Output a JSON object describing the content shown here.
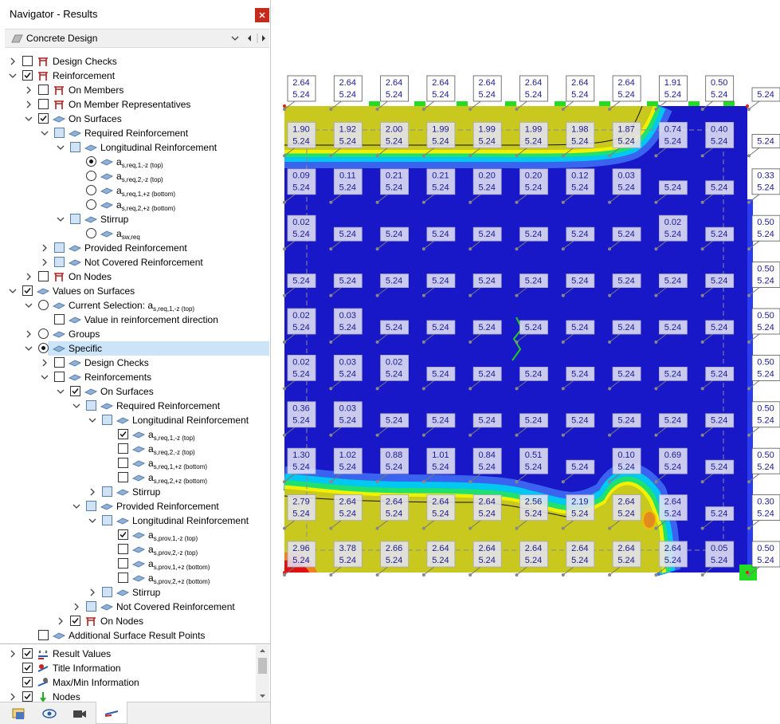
{
  "navigator": {
    "title": "Navigator - Results",
    "dropdown": "Concrete Design",
    "items": [
      {
        "label": "Design Checks",
        "level": 0,
        "expander": "collapsed",
        "control": "checkbox",
        "state": "unchecked",
        "icon": "member"
      },
      {
        "label": "Reinforcement",
        "level": 0,
        "expander": "expanded",
        "control": "checkbox",
        "state": "checked",
        "icon": "member"
      },
      {
        "label": "On Members",
        "level": 1,
        "expander": "collapsed",
        "control": "checkbox",
        "state": "unchecked",
        "icon": "member"
      },
      {
        "label": "On Member Representatives",
        "level": 1,
        "expander": "collapsed",
        "control": "checkbox",
        "state": "unchecked",
        "icon": "member"
      },
      {
        "label": "On Surfaces",
        "level": 1,
        "expander": "expanded",
        "control": "checkbox",
        "state": "checked",
        "icon": "surface"
      },
      {
        "label": "Required Reinforcement",
        "level": 2,
        "expander": "expanded",
        "control": "checkbox",
        "state": "partial",
        "icon": "surface"
      },
      {
        "label": "Longitudinal Reinforcement",
        "level": 3,
        "expander": "expanded",
        "control": "checkbox",
        "state": "partial",
        "icon": "surface"
      },
      {
        "label": "a",
        "sub": "s,req,1,-z (top)",
        "level": 4,
        "control": "radio",
        "state": "selected",
        "icon": "surface"
      },
      {
        "label": "a",
        "sub": "s,req,2,-z (top)",
        "level": 4,
        "control": "radio",
        "state": "unselected",
        "icon": "surface"
      },
      {
        "label": "a",
        "sub": "s,req,1,+z (bottom)",
        "level": 4,
        "control": "radio",
        "state": "unselected",
        "icon": "surface"
      },
      {
        "label": "a",
        "sub": "s,req,2,+z (bottom)",
        "level": 4,
        "control": "radio",
        "state": "unselected",
        "icon": "surface"
      },
      {
        "label": "Stirrup",
        "level": 3,
        "expander": "expanded",
        "control": "checkbox",
        "state": "partial",
        "icon": "surface"
      },
      {
        "label": "a",
        "sub": "sw,req",
        "level": 4,
        "control": "radio",
        "state": "unselected",
        "icon": "surface"
      },
      {
        "label": "Provided Reinforcement",
        "level": 2,
        "expander": "collapsed",
        "control": "checkbox",
        "state": "partial",
        "icon": "surface"
      },
      {
        "label": "Not Covered Reinforcement",
        "level": 2,
        "expander": "collapsed",
        "control": "checkbox",
        "state": "partial",
        "icon": "surface"
      },
      {
        "label": "On Nodes",
        "level": 1,
        "expander": "collapsed",
        "control": "checkbox",
        "state": "unchecked",
        "icon": "member"
      },
      {
        "label": "Values on Surfaces",
        "level": 0,
        "expander": "expanded",
        "control": "checkbox",
        "state": "checked",
        "icon": "surface"
      },
      {
        "label": "Current Selection: a",
        "sub": "s,req,1,-z (top)",
        "level": 1,
        "expander": "expanded",
        "control": "radio",
        "state": "unselected",
        "icon": "surface"
      },
      {
        "label": "Value in reinforcement direction",
        "level": 2,
        "control": "checkbox",
        "state": "unchecked",
        "icon": "surface"
      },
      {
        "label": "Groups",
        "level": 1,
        "expander": "collapsed",
        "control": "radio",
        "state": "unselected",
        "icon": "surface"
      },
      {
        "label": "Specific",
        "level": 1,
        "expander": "expanded",
        "control": "radio",
        "state": "selected",
        "icon": "surface",
        "highlighted": true
      },
      {
        "label": "Design Checks",
        "level": 2,
        "expander": "collapsed",
        "control": "checkbox",
        "state": "unchecked",
        "icon": "surface"
      },
      {
        "label": "Reinforcements",
        "level": 2,
        "expander": "expanded",
        "control": "checkbox",
        "state": "unchecked",
        "icon": "surface"
      },
      {
        "label": "On Surfaces",
        "level": 3,
        "expander": "expanded",
        "control": "checkbox",
        "state": "checked",
        "icon": "surface"
      },
      {
        "label": "Required Reinforcement",
        "level": 4,
        "expander": "expanded",
        "control": "checkbox",
        "state": "partial",
        "icon": "surface"
      },
      {
        "label": "Longitudinal Reinforcement",
        "level": 5,
        "expander": "expanded",
        "control": "checkbox",
        "state": "partial",
        "icon": "surface"
      },
      {
        "label": "a",
        "sub": "s,req,1,-z (top)",
        "level": 6,
        "control": "checkbox",
        "state": "checked",
        "icon": "surface"
      },
      {
        "label": "a",
        "sub": "s,req,2,-z (top)",
        "level": 6,
        "control": "checkbox",
        "state": "unchecked",
        "icon": "surface"
      },
      {
        "label": "a",
        "sub": "s,req,1,+z (bottom)",
        "level": 6,
        "control": "checkbox",
        "state": "unchecked",
        "icon": "surface"
      },
      {
        "label": "a",
        "sub": "s,req,2,+z (bottom)",
        "level": 6,
        "control": "checkbox",
        "state": "unchecked",
        "icon": "surface"
      },
      {
        "label": "Stirrup",
        "level": 5,
        "expander": "collapsed",
        "control": "checkbox",
        "state": "partial",
        "icon": "surface"
      },
      {
        "label": "Provided Reinforcement",
        "level": 4,
        "expander": "expanded",
        "control": "checkbox",
        "state": "partial",
        "icon": "surface"
      },
      {
        "label": "Longitudinal Reinforcement",
        "level": 5,
        "expander": "expanded",
        "control": "checkbox",
        "state": "partial",
        "icon": "surface"
      },
      {
        "label": "a",
        "sub": "s,prov,1,-z (top)",
        "level": 6,
        "control": "checkbox",
        "state": "checked",
        "icon": "surface"
      },
      {
        "label": "a",
        "sub": "s,prov,2,-z (top)",
        "level": 6,
        "control": "checkbox",
        "state": "unchecked",
        "icon": "surface"
      },
      {
        "label": "a",
        "sub": "s,prov,1,+z (bottom)",
        "level": 6,
        "control": "checkbox",
        "state": "unchecked",
        "icon": "surface"
      },
      {
        "label": "a",
        "sub": "s,prov,2,+z (bottom)",
        "level": 6,
        "control": "checkbox",
        "state": "unchecked",
        "icon": "surface"
      },
      {
        "label": "Stirrup",
        "level": 5,
        "expander": "collapsed",
        "control": "checkbox",
        "state": "partial",
        "icon": "surface"
      },
      {
        "label": "Not Covered Reinforcement",
        "level": 4,
        "expander": "collapsed",
        "control": "checkbox",
        "state": "partial",
        "icon": "surface"
      },
      {
        "label": "On Nodes",
        "level": 3,
        "expander": "collapsed",
        "control": "checkbox",
        "state": "checked",
        "icon": "member"
      },
      {
        "label": "Additional Surface Result Points",
        "level": 1,
        "control": "checkbox",
        "state": "unchecked",
        "icon": "surface"
      }
    ],
    "bottom_items": [
      {
        "label": "Result Values",
        "expander": "collapsed",
        "state": "checked",
        "icon": "values"
      },
      {
        "label": "Title Information",
        "state": "checked",
        "icon": "title"
      },
      {
        "label": "Max/Min Information",
        "state": "checked",
        "icon": "maxmin"
      },
      {
        "label": "Nodes",
        "expander": "collapsed",
        "state": "checked",
        "icon": "nodes"
      }
    ]
  },
  "result_labels": {
    "rows": [
      [
        [
          "2.64",
          "5.24"
        ],
        [
          "2.64",
          "5.24"
        ],
        [
          "2.64",
          "5.24"
        ],
        [
          "2.64",
          "5.24"
        ],
        [
          "2.64",
          "5.24"
        ],
        [
          "2.64",
          "5.24"
        ],
        [
          "2.64",
          "5.24"
        ],
        [
          "2.64",
          "5.24"
        ],
        [
          "1.91",
          "5.24"
        ],
        [
          "0.50",
          "5.24"
        ],
        [
          "5.24"
        ]
      ],
      [
        [
          "1.90",
          "5.24"
        ],
        [
          "1.92",
          "5.24"
        ],
        [
          "2.00",
          "5.24"
        ],
        [
          "1.99",
          "5.24"
        ],
        [
          "1.99",
          "5.24"
        ],
        [
          "1.99",
          "5.24"
        ],
        [
          "1.98",
          "5.24"
        ],
        [
          "1.87",
          "5.24"
        ],
        [
          "0.74",
          "5.24"
        ],
        [
          "0.40",
          "5.24"
        ],
        [
          "5.24"
        ]
      ],
      [
        [
          "0.09",
          "5.24"
        ],
        [
          "0.11",
          "5.24"
        ],
        [
          "0.21",
          "5.24"
        ],
        [
          "0.21",
          "5.24"
        ],
        [
          "0.20",
          "5.24"
        ],
        [
          "0.20",
          "5.24"
        ],
        [
          "0.12",
          "5.24"
        ],
        [
          "0.03",
          "5.24"
        ],
        [
          "5.24"
        ],
        [
          "5.24"
        ],
        [
          "0.33",
          "5.24"
        ]
      ],
      [
        [
          "0.02",
          "5.24"
        ],
        [
          "5.24"
        ],
        [
          "5.24"
        ],
        [
          "5.24"
        ],
        [
          "5.24"
        ],
        [
          "5.24"
        ],
        [
          "5.24"
        ],
        [
          "5.24"
        ],
        [
          "0.02",
          "5.24"
        ],
        [
          "5.24"
        ],
        [
          "0.50",
          "5.24"
        ]
      ],
      [
        [
          "5.24"
        ],
        [
          "5.24"
        ],
        [
          "5.24"
        ],
        [
          "5.24"
        ],
        [
          "5.24"
        ],
        [
          "5.24"
        ],
        [
          "5.24"
        ],
        [
          "5.24"
        ],
        [
          "5.24"
        ],
        [
          "5.24"
        ],
        [
          "0.50",
          "5.24"
        ]
      ],
      [
        [
          "0.02",
          "5.24"
        ],
        [
          "0.03",
          "5.24"
        ],
        [
          "5.24"
        ],
        [
          "5.24"
        ],
        [
          "5.24"
        ],
        [
          "5.24"
        ],
        [
          "5.24"
        ],
        [
          "5.24"
        ],
        [
          "5.24"
        ],
        [
          "5.24"
        ],
        [
          "0.50",
          "5.24"
        ]
      ],
      [
        [
          "0.02",
          "5.24"
        ],
        [
          "0.03",
          "5.24"
        ],
        [
          "0.02",
          "5.24"
        ],
        [
          "5.24"
        ],
        [
          "5.24"
        ],
        [
          "5.24"
        ],
        [
          "5.24"
        ],
        [
          "5.24"
        ],
        [
          "5.24"
        ],
        [
          "5.24"
        ],
        [
          "0.50",
          "5.24"
        ]
      ],
      [
        [
          "0.36",
          "5.24"
        ],
        [
          "0.03",
          "5.24"
        ],
        [
          "5.24"
        ],
        [
          "5.24"
        ],
        [
          "5.24"
        ],
        [
          "5.24"
        ],
        [
          "5.24"
        ],
        [
          "5.24"
        ],
        [
          "5.24"
        ],
        [
          "5.24"
        ],
        [
          "0.50",
          "5.24"
        ]
      ],
      [
        [
          "1.30",
          "5.24"
        ],
        [
          "1.02",
          "5.24"
        ],
        [
          "0.88",
          "5.24"
        ],
        [
          "1.01",
          "5.24"
        ],
        [
          "0.84",
          "5.24"
        ],
        [
          "0.51",
          "5.24"
        ],
        [
          "5.24"
        ],
        [
          "0.10",
          "5.24"
        ],
        [
          "0.69",
          "5.24"
        ],
        [
          "5.24"
        ],
        [
          "0.50",
          "5.24"
        ]
      ],
      [
        [
          "2.79",
          "5.24"
        ],
        [
          "2.64",
          "5.24"
        ],
        [
          "2.64",
          "5.24"
        ],
        [
          "2.64",
          "5.24"
        ],
        [
          "2.64",
          "5.24"
        ],
        [
          "2.56",
          "5.24"
        ],
        [
          "2.19",
          "5.24"
        ],
        [
          "2.64",
          "5.24"
        ],
        [
          "2.64",
          "5.24"
        ],
        [
          "5.24"
        ],
        [
          "0.30",
          "5.24"
        ]
      ],
      [
        [
          "2.96",
          "5.24"
        ],
        [
          "3.78",
          "5.24"
        ],
        [
          "2.66",
          "5.24"
        ],
        [
          "2.64",
          "5.24"
        ],
        [
          "2.64",
          "5.24"
        ],
        [
          "2.64",
          "5.24"
        ],
        [
          "2.64",
          "5.24"
        ],
        [
          "2.64",
          "5.24"
        ],
        [
          "2.64",
          "5.24"
        ],
        [
          "0.05",
          "5.24"
        ],
        [
          "0.50",
          "5.24"
        ]
      ]
    ]
  }
}
